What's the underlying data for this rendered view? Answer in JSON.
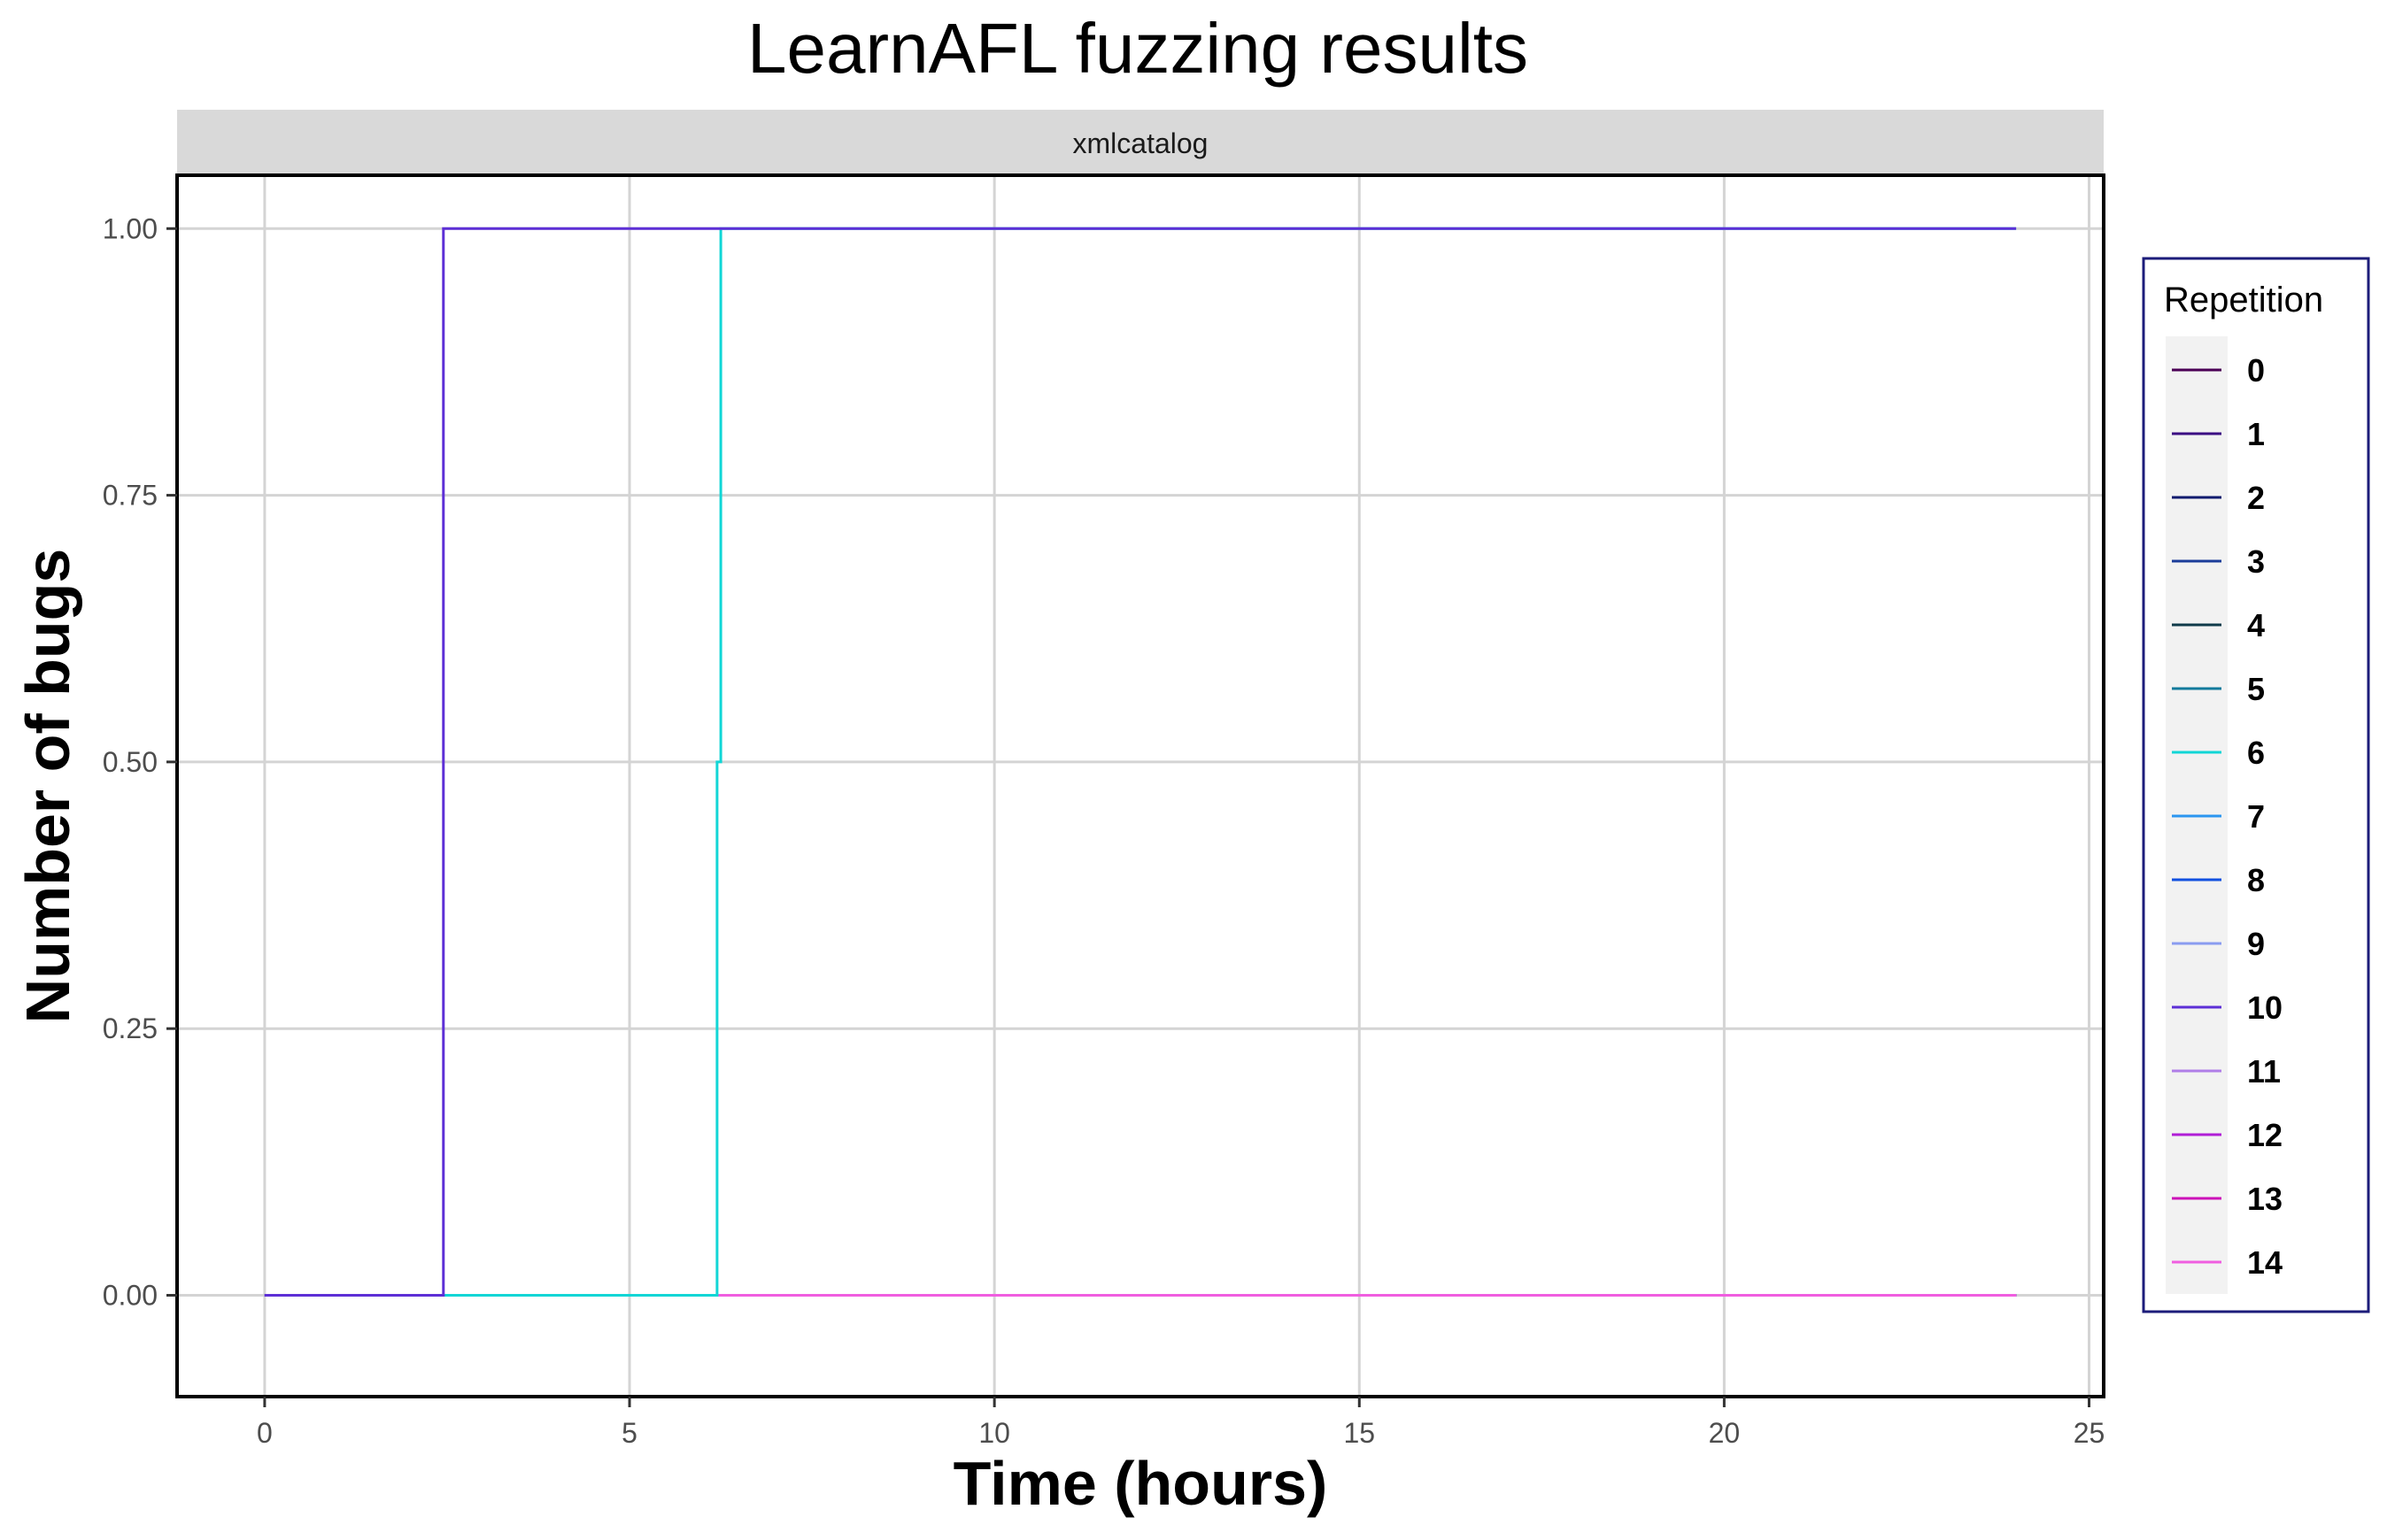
{
  "chart_data": {
    "type": "line",
    "title": "LearnAFL fuzzing results",
    "facet": "xmlcatalog",
    "xlabel": "Time (hours)",
    "ylabel": "Number of bugs",
    "xlim": [
      -1.2,
      25.2
    ],
    "ylim": [
      -0.095,
      1.05
    ],
    "x_ticks": [
      0,
      5,
      10,
      15,
      20,
      25
    ],
    "x_tick_labels": [
      "0",
      "5",
      "10",
      "15",
      "20",
      "25"
    ],
    "y_ticks": [
      0,
      0.25,
      0.5,
      0.75,
      1.0
    ],
    "y_tick_labels": [
      "0.00",
      "0.25",
      "0.50",
      "0.75",
      "1.00"
    ],
    "grid": true,
    "legend": {
      "title": "Repetition",
      "position": "right"
    },
    "series": [
      {
        "name": "0",
        "color": "#4b0055",
        "x": [
          0,
          24
        ],
        "y": [
          0,
          0
        ]
      },
      {
        "name": "1",
        "color": "#3c0d83",
        "x": [
          0,
          24
        ],
        "y": [
          0,
          0
        ]
      },
      {
        "name": "2",
        "color": "#101a6e",
        "x": [
          0,
          24
        ],
        "y": [
          0,
          0
        ]
      },
      {
        "name": "3",
        "color": "#1c3d9a",
        "x": [
          0,
          24
        ],
        "y": [
          0,
          0
        ]
      },
      {
        "name": "4",
        "color": "#0f3b4a",
        "x": [
          0,
          24
        ],
        "y": [
          0,
          0
        ]
      },
      {
        "name": "5",
        "color": "#127a9c",
        "x": [
          0,
          24
        ],
        "y": [
          0,
          0
        ]
      },
      {
        "name": "6",
        "color": "#11d6d6",
        "x": [
          0,
          6.2,
          6.2,
          6.25,
          6.25,
          24
        ],
        "y": [
          0,
          0,
          0.5,
          0.5,
          1,
          1
        ]
      },
      {
        "name": "7",
        "color": "#2b96f0",
        "x": [
          0,
          24
        ],
        "y": [
          0,
          0
        ]
      },
      {
        "name": "8",
        "color": "#1150e0",
        "x": [
          0,
          24
        ],
        "y": [
          0,
          0
        ]
      },
      {
        "name": "9",
        "color": "#8a9cf0",
        "x": [
          0,
          24
        ],
        "y": [
          0,
          0
        ]
      },
      {
        "name": "10",
        "color": "#5d2fd6",
        "x": [
          0,
          2.45,
          2.45,
          24
        ],
        "y": [
          0,
          0,
          1,
          1
        ]
      },
      {
        "name": "11",
        "color": "#b07ee8",
        "x": [
          0,
          24
        ],
        "y": [
          0,
          0
        ]
      },
      {
        "name": "12",
        "color": "#b01ed6",
        "x": [
          0,
          24
        ],
        "y": [
          0,
          0
        ]
      },
      {
        "name": "13",
        "color": "#cc12b8",
        "x": [
          0,
          24
        ],
        "y": [
          0,
          0
        ]
      },
      {
        "name": "14",
        "color": "#f05ee0",
        "x": [
          0,
          24
        ],
        "y": [
          0,
          0
        ]
      }
    ]
  }
}
